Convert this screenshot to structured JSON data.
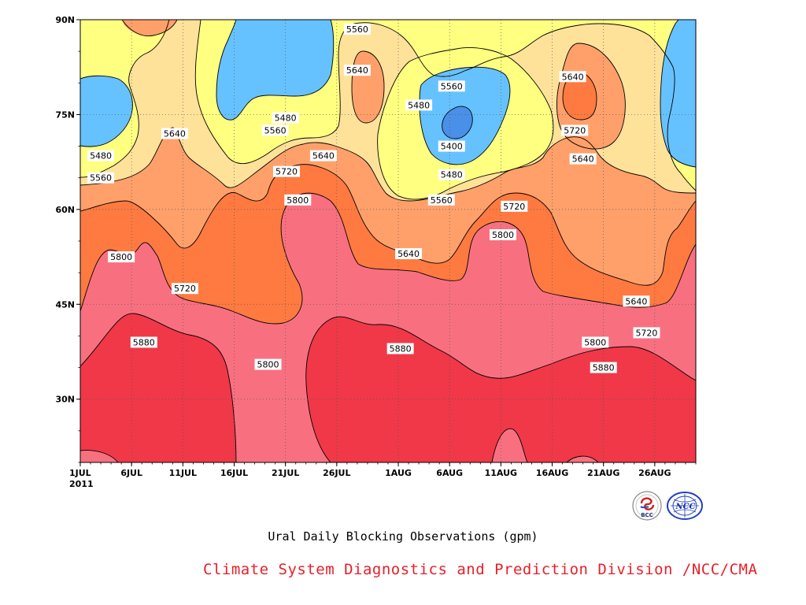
{
  "chart_data": {
    "type": "contour",
    "title": "Ural Daily Blocking Observations (gpm)",
    "credit": "Climate System Diagnostics and Prediction Division /NCC/CMA",
    "x_year_label": "2011",
    "x_ticks": [
      {
        "label": "1JUL",
        "day": 0
      },
      {
        "label": "6JUL",
        "day": 5
      },
      {
        "label": "11JUL",
        "day": 10
      },
      {
        "label": "16JUL",
        "day": 15
      },
      {
        "label": "21JUL",
        "day": 20
      },
      {
        "label": "26JUL",
        "day": 25
      },
      {
        "label": "1AUG",
        "day": 31
      },
      {
        "label": "6AUG",
        "day": 36
      },
      {
        "label": "11AUG",
        "day": 41
      },
      {
        "label": "16AUG",
        "day": 46
      },
      {
        "label": "21AUG",
        "day": 51
      },
      {
        "label": "26AUG",
        "day": 56
      }
    ],
    "y_ticks": [
      {
        "label": "30N",
        "lat": 30
      },
      {
        "label": "45N",
        "lat": 45
      },
      {
        "label": "60N",
        "lat": 60
      },
      {
        "label": "75N",
        "lat": 75
      },
      {
        "label": "90N",
        "lat": 90
      }
    ],
    "ylim": [
      20,
      90
    ],
    "xlim_days": [
      0,
      60
    ],
    "grid": true,
    "levels": [
      5400,
      5480,
      5560,
      5640,
      5720,
      5800,
      5880
    ],
    "colors": [
      "#4a90e8",
      "#66c2ff",
      "#ffff80",
      "#ffe29a",
      "#ffa06a",
      "#ff7a40",
      "#f87080",
      "#f03848"
    ],
    "contour_labels": [
      {
        "text": "5560",
        "day": 27.0,
        "lat": 88.5
      },
      {
        "text": "5560",
        "day": 36.2,
        "lat": 79.5
      },
      {
        "text": "5640",
        "day": 27.0,
        "lat": 82.0
      },
      {
        "text": "5480",
        "day": 33.0,
        "lat": 76.5
      },
      {
        "text": "5640",
        "day": 48.0,
        "lat": 81.0
      },
      {
        "text": "5480",
        "day": 20.0,
        "lat": 74.5
      },
      {
        "text": "5560",
        "day": 19.0,
        "lat": 72.5
      },
      {
        "text": "5640",
        "day": 9.2,
        "lat": 72.0
      },
      {
        "text": "5720",
        "day": 48.2,
        "lat": 72.5
      },
      {
        "text": "5400",
        "day": 36.2,
        "lat": 70.0
      },
      {
        "text": "5480",
        "day": 2.0,
        "lat": 68.5
      },
      {
        "text": "5640",
        "day": 23.7,
        "lat": 68.5
      },
      {
        "text": "5640",
        "day": 49.0,
        "lat": 68.0
      },
      {
        "text": "5560",
        "day": 2.0,
        "lat": 65.0
      },
      {
        "text": "5480",
        "day": 36.2,
        "lat": 65.5
      },
      {
        "text": "5720",
        "day": 20.1,
        "lat": 66.0
      },
      {
        "text": "5560",
        "day": 35.2,
        "lat": 61.5
      },
      {
        "text": "5800",
        "day": 21.2,
        "lat": 61.5
      },
      {
        "text": "5720",
        "day": 42.3,
        "lat": 60.5
      },
      {
        "text": "5800",
        "day": 41.2,
        "lat": 56.0
      },
      {
        "text": "5800",
        "day": 4.0,
        "lat": 52.5
      },
      {
        "text": "5640",
        "day": 32.0,
        "lat": 53.0
      },
      {
        "text": "5720",
        "day": 10.2,
        "lat": 47.5
      },
      {
        "text": "5640",
        "day": 54.2,
        "lat": 45.5
      },
      {
        "text": "5720",
        "day": 55.2,
        "lat": 40.5
      },
      {
        "text": "5800",
        "day": 50.2,
        "lat": 39.0
      },
      {
        "text": "5880",
        "day": 6.2,
        "lat": 39.0
      },
      {
        "text": "5880",
        "day": 31.2,
        "lat": 38.0
      },
      {
        "text": "5800",
        "day": 18.3,
        "lat": 35.5
      },
      {
        "text": "5880",
        "day": 51.0,
        "lat": 35.0
      }
    ]
  },
  "logos": {
    "left_text": "BCC",
    "right_text": "NCC"
  }
}
